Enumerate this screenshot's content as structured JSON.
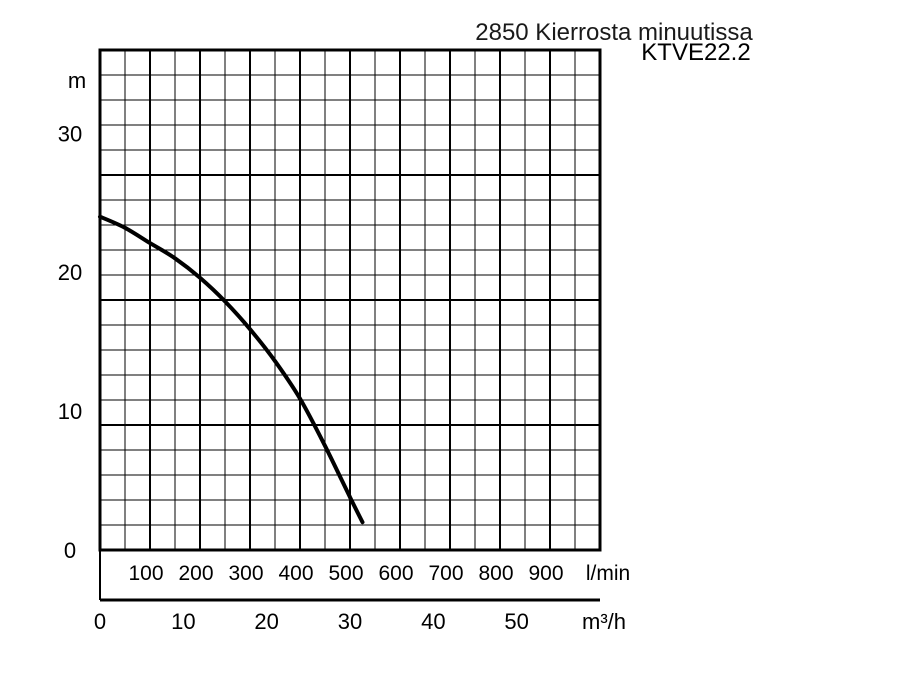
{
  "chart_data": {
    "type": "line",
    "title": "2850 Kierrosta minuutissa",
    "subtitle": "KTVE22.2",
    "ylabel": "m",
    "ylim": [
      0,
      36
    ],
    "y_ticks": [
      "0",
      "10",
      "20",
      "30"
    ],
    "x_unit_lmin": "l/min",
    "x_ticks_lmin": [
      "100",
      "200",
      "300",
      "400",
      "500",
      "600",
      "700",
      "800",
      "900"
    ],
    "xlabel": "m³/h",
    "xlim_m3h": [
      0,
      60
    ],
    "x_ticks_m3h": [
      "0",
      "10",
      "20",
      "30",
      "40",
      "50"
    ],
    "grid": true,
    "series": [
      {
        "x_lmin": [
          0,
          50,
          100,
          150,
          200,
          250,
          300,
          350,
          400,
          450,
          500,
          525
        ],
        "y_m": [
          24,
          23.2,
          22.1,
          21,
          19.6,
          17.9,
          15.9,
          13.6,
          10.9,
          7.5,
          3.8,
          2
        ]
      }
    ]
  }
}
